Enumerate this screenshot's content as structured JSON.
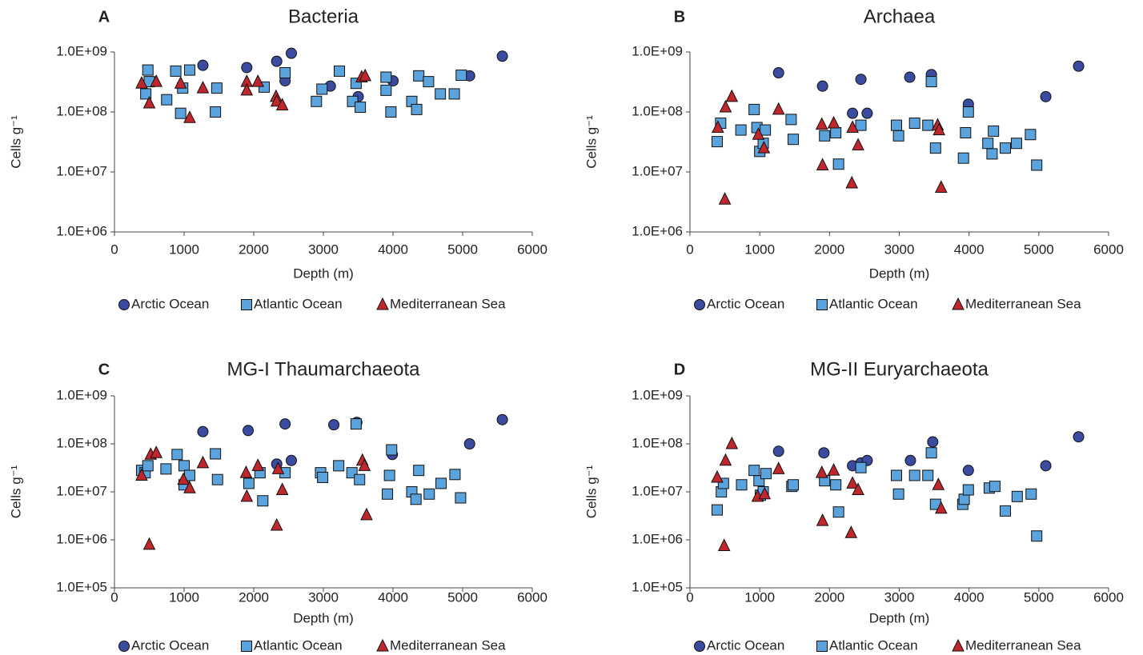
{
  "chart_data": [
    {
      "type": "scatter",
      "panel_label": "A",
      "title": "Bacteria",
      "x_label": "Depth (m)",
      "y_label": "Cells g⁻¹",
      "log_scale": "y",
      "legend_position": "bottom",
      "xlim": [
        0,
        6000
      ],
      "xticks": [
        0,
        1000,
        2000,
        3000,
        4000,
        5000,
        6000
      ],
      "ylim": [
        1000000,
        1000000000
      ],
      "yticks": [
        {
          "value": 1000000,
          "label": "1.0E+06"
        },
        {
          "value": 10000000,
          "label": "1.0E+07"
        },
        {
          "value": 100000000,
          "label": "1.0E+08"
        },
        {
          "value": 1000000000,
          "label": "1.0E+09"
        }
      ],
      "series": [
        {
          "name": "Arctic Ocean",
          "color": "#3b4ba0",
          "marker": "circle",
          "x": [
            1270,
            1900,
            2330,
            2450,
            2540,
            3100,
            3500,
            4000,
            5100,
            5570
          ],
          "values": [
            600000000,
            550000000,
            700000000,
            330000000,
            950000000,
            270000000,
            180000000,
            330000000,
            400000000,
            850000000
          ]
        },
        {
          "name": "Atlantic Ocean",
          "color": "#5ba3dc",
          "marker": "square",
          "x": [
            450,
            480,
            500,
            750,
            880,
            950,
            980,
            1080,
            1450,
            1470,
            2150,
            2450,
            2900,
            2980,
            3230,
            3420,
            3470,
            3530,
            3900,
            3900,
            3970,
            4270,
            4340,
            4370,
            4510,
            4680,
            4880,
            4980
          ],
          "values": [
            200000000,
            500000000,
            320000000,
            160000000,
            480000000,
            95000000,
            250000000,
            500000000,
            100000000,
            250000000,
            260000000,
            450000000,
            150000000,
            240000000,
            480000000,
            150000000,
            300000000,
            120000000,
            380000000,
            230000000,
            100000000,
            150000000,
            110000000,
            400000000,
            320000000,
            200000000,
            200000000,
            410000000
          ]
        },
        {
          "name": "Mediterranean Sea",
          "color": "#c0272d",
          "marker": "triangle",
          "x": [
            390,
            500,
            600,
            950,
            1080,
            1270,
            1900,
            1900,
            2060,
            2320,
            2330,
            2410,
            3550,
            3600
          ],
          "values": [
            300000000,
            140000000,
            320000000,
            300000000,
            80000000,
            250000000,
            320000000,
            230000000,
            320000000,
            180000000,
            150000000,
            130000000,
            380000000,
            400000000
          ]
        }
      ]
    },
    {
      "type": "scatter",
      "panel_label": "B",
      "title": "Archaea",
      "x_label": "Depth (m)",
      "y_label": "Cells g⁻¹",
      "log_scale": "y",
      "legend_position": "bottom",
      "xlim": [
        0,
        6000
      ],
      "xticks": [
        0,
        1000,
        2000,
        3000,
        4000,
        5000,
        6000
      ],
      "ylim": [
        1000000,
        1000000000
      ],
      "yticks": [
        {
          "value": 1000000,
          "label": "1.0E+06"
        },
        {
          "value": 10000000,
          "label": "1.0E+07"
        },
        {
          "value": 100000000,
          "label": "1.0E+08"
        },
        {
          "value": 1000000000,
          "label": "1.0E+09"
        }
      ],
      "series": [
        {
          "name": "Arctic Ocean",
          "color": "#3b4ba0",
          "marker": "circle",
          "x": [
            1270,
            1900,
            2330,
            2450,
            2540,
            3150,
            3460,
            3990,
            5100,
            5570
          ],
          "values": [
            450000000,
            270000000,
            95000000,
            350000000,
            95000000,
            380000000,
            420000000,
            135000000,
            180000000,
            580000000
          ]
        },
        {
          "name": "Atlantic Ocean",
          "color": "#5ba3dc",
          "marker": "square",
          "x": [
            390,
            440,
            730,
            920,
            960,
            1000,
            1050,
            1080,
            1450,
            1480,
            1930,
            2090,
            2130,
            2450,
            2960,
            2990,
            3220,
            3410,
            3460,
            3520,
            3920,
            3950,
            3990,
            4270,
            4330,
            4350,
            4520,
            4680,
            4880,
            4970
          ],
          "values": [
            32000000,
            65000000,
            50000000,
            110000000,
            55000000,
            22000000,
            30000000,
            50000000,
            75000000,
            35000000,
            40000000,
            45000000,
            13500000,
            60000000,
            60000000,
            40000000,
            65000000,
            60000000,
            320000000,
            25000000,
            17000000,
            45000000,
            100000000,
            30000000,
            20000000,
            48000000,
            25000000,
            30000000,
            42000000,
            13000000
          ]
        },
        {
          "name": "Mediterranean Sea",
          "color": "#c0272d",
          "marker": "triangle",
          "x": [
            400,
            500,
            510,
            600,
            980,
            1060,
            1270,
            1890,
            1900,
            2060,
            2320,
            2330,
            2410,
            3550,
            3570,
            3600
          ],
          "values": [
            55000000,
            3500000,
            120000000,
            180000000,
            42000000,
            25000000,
            110000000,
            62000000,
            13000000,
            65000000,
            6500000,
            55000000,
            28000000,
            60000000,
            50000000,
            5500000
          ]
        }
      ]
    },
    {
      "type": "scatter",
      "panel_label": "C",
      "title": "MG-I Thaumarchaeota",
      "x_label": "Depth (m)",
      "y_label": "Cells g⁻¹",
      "log_scale": "y",
      "legend_position": "bottom",
      "xlim": [
        0,
        6000
      ],
      "xticks": [
        0,
        1000,
        2000,
        3000,
        4000,
        5000,
        6000
      ],
      "ylim": [
        100000,
        1000000000
      ],
      "yticks": [
        {
          "value": 100000,
          "label": "1.0E+05"
        },
        {
          "value": 1000000,
          "label": "1.0E+06"
        },
        {
          "value": 10000000,
          "label": "1.0E+07"
        },
        {
          "value": 100000000,
          "label": "1.0E+08"
        },
        {
          "value": 1000000000,
          "label": "1.0E+09"
        }
      ],
      "series": [
        {
          "name": "Arctic Ocean",
          "color": "#3b4ba0",
          "marker": "circle",
          "x": [
            1270,
            1920,
            2330,
            2450,
            2540,
            3150,
            3480,
            3990,
            5100,
            5570
          ],
          "values": [
            180000000,
            190000000,
            38000000,
            260000000,
            45000000,
            250000000,
            280000000,
            60000000,
            100000000,
            320000000
          ]
        },
        {
          "name": "Atlantic Ocean",
          "color": "#5ba3dc",
          "marker": "square",
          "x": [
            390,
            440,
            480,
            740,
            900,
            1000,
            1000,
            1080,
            1450,
            1480,
            1930,
            2090,
            2130,
            2450,
            2960,
            2990,
            3220,
            3410,
            3470,
            3520,
            3920,
            3950,
            3980,
            4270,
            4330,
            4370,
            4520,
            4690,
            4890,
            4970
          ],
          "values": [
            28000000,
            25000000,
            35000000,
            30000000,
            60000000,
            14000000,
            35000000,
            22000000,
            62000000,
            18000000,
            15000000,
            25000000,
            6500000,
            25000000,
            25000000,
            20000000,
            35000000,
            25000000,
            260000000,
            18000000,
            9000000,
            22000000,
            75000000,
            10000000,
            7000000,
            28000000,
            9000000,
            15000000,
            23000000,
            7500000
          ]
        },
        {
          "name": "Mediterranean Sea",
          "color": "#c0272d",
          "marker": "triangle",
          "x": [
            390,
            500,
            520,
            600,
            990,
            1080,
            1270,
            1890,
            1900,
            2060,
            2330,
            2350,
            2410,
            3560,
            3590,
            3620
          ],
          "values": [
            22000000,
            800000,
            60000000,
            65000000,
            18000000,
            12000000,
            40000000,
            25000000,
            8000000,
            35000000,
            2000000,
            30000000,
            11000000,
            45000000,
            35000000,
            3300000
          ]
        }
      ]
    },
    {
      "type": "scatter",
      "panel_label": "D",
      "title": "MG-II Euryarchaeota",
      "x_label": "Depth (m)",
      "y_label": "Cells g⁻¹",
      "log_scale": "y",
      "legend_position": "bottom",
      "xlim": [
        0,
        6000
      ],
      "xticks": [
        0,
        1000,
        2000,
        3000,
        4000,
        5000,
        6000
      ],
      "ylim": [
        100000,
        1000000000
      ],
      "yticks": [
        {
          "value": 100000,
          "label": "1.0E+05"
        },
        {
          "value": 1000000,
          "label": "1.0E+06"
        },
        {
          "value": 10000000,
          "label": "1.0E+07"
        },
        {
          "value": 100000000,
          "label": "1.0E+08"
        },
        {
          "value": 1000000000,
          "label": "1.0E+09"
        }
      ],
      "series": [
        {
          "name": "Arctic Ocean",
          "color": "#3b4ba0",
          "marker": "circle",
          "x": [
            1270,
            1920,
            2330,
            2450,
            2540,
            3160,
            3480,
            3990,
            5100,
            5570
          ],
          "values": [
            70000000,
            65000000,
            35000000,
            40000000,
            45000000,
            45000000,
            110000000,
            28000000,
            35000000,
            140000000
          ]
        },
        {
          "name": "Atlantic Ocean",
          "color": "#5ba3dc",
          "marker": "square",
          "x": [
            390,
            450,
            480,
            740,
            920,
            990,
            1010,
            1050,
            1090,
            1460,
            1480,
            1930,
            2090,
            2130,
            2450,
            2960,
            2990,
            3220,
            3410,
            3460,
            3520,
            3910,
            3930,
            3990,
            4290,
            4370,
            4520,
            4690,
            4890,
            4970
          ],
          "values": [
            4200000,
            10000000,
            15000000,
            14000000,
            28000000,
            17000000,
            8500000,
            10000000,
            24000000,
            13000000,
            14000000,
            17000000,
            14000000,
            3800000,
            32000000,
            22000000,
            9000000,
            22000000,
            22000000,
            65000000,
            5500000,
            5500000,
            7000000,
            11000000,
            12000000,
            13000000,
            4000000,
            8000000,
            9000000,
            1200000
          ]
        },
        {
          "name": "Mediterranean Sea",
          "color": "#c0272d",
          "marker": "triangle",
          "x": [
            390,
            490,
            510,
            600,
            970,
            1070,
            1270,
            1890,
            1900,
            2060,
            2310,
            2330,
            2410,
            3560,
            3600
          ],
          "values": [
            20000000,
            750000,
            45000000,
            100000000,
            8000000,
            9000000,
            30000000,
            25000000,
            2500000,
            28000000,
            1400000,
            15000000,
            11000000,
            14000000,
            4500000
          ]
        }
      ]
    }
  ]
}
